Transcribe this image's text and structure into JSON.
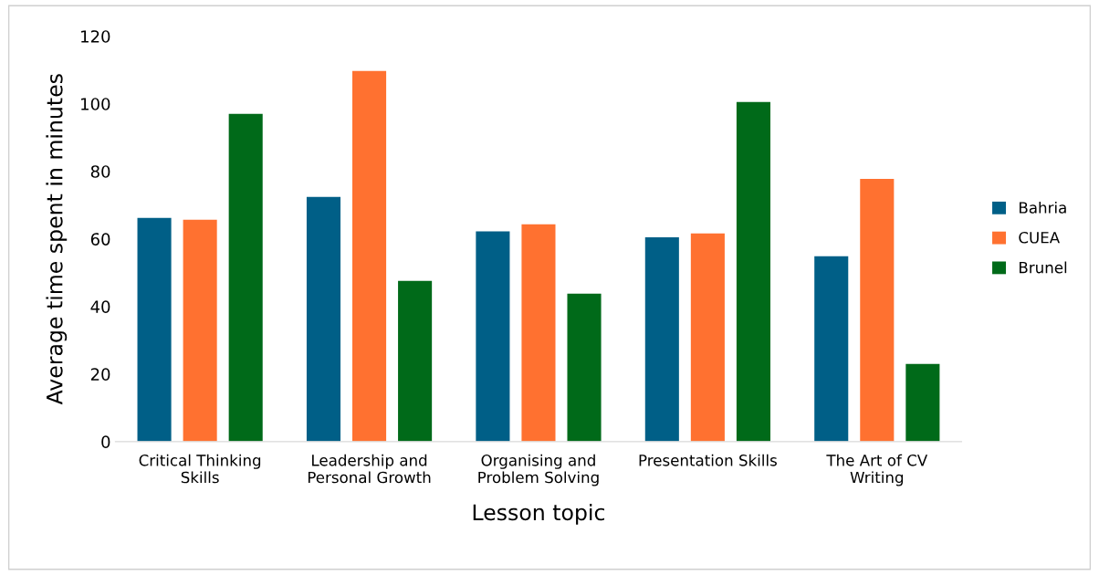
{
  "chart_data": {
    "type": "bar",
    "xlabel": "Lesson topic",
    "ylabel": "Average time spent in minutes",
    "categories": [
      "Critical Thinking\nSkills",
      "Leadership and\nPersonal Growth",
      "Organising and\nProblem Solving",
      "Presentation Skills",
      "The Art of CV\nWriting"
    ],
    "series": [
      {
        "name": "Bahria",
        "color": "#005f87",
        "values": [
          66.2,
          72.4,
          62.2,
          60.5,
          54.9
        ]
      },
      {
        "name": "CUEA",
        "color": "#ff7130",
        "values": [
          65.7,
          109.7,
          64.3,
          61.6,
          77.8
        ]
      },
      {
        "name": "Brunel",
        "color": "#006a19",
        "values": [
          97.0,
          47.6,
          43.8,
          100.5,
          23.0
        ]
      }
    ],
    "ylim": [
      0,
      120
    ],
    "yticks": [
      0,
      20,
      40,
      60,
      80,
      100,
      120
    ],
    "grid": false,
    "legend": "right"
  }
}
